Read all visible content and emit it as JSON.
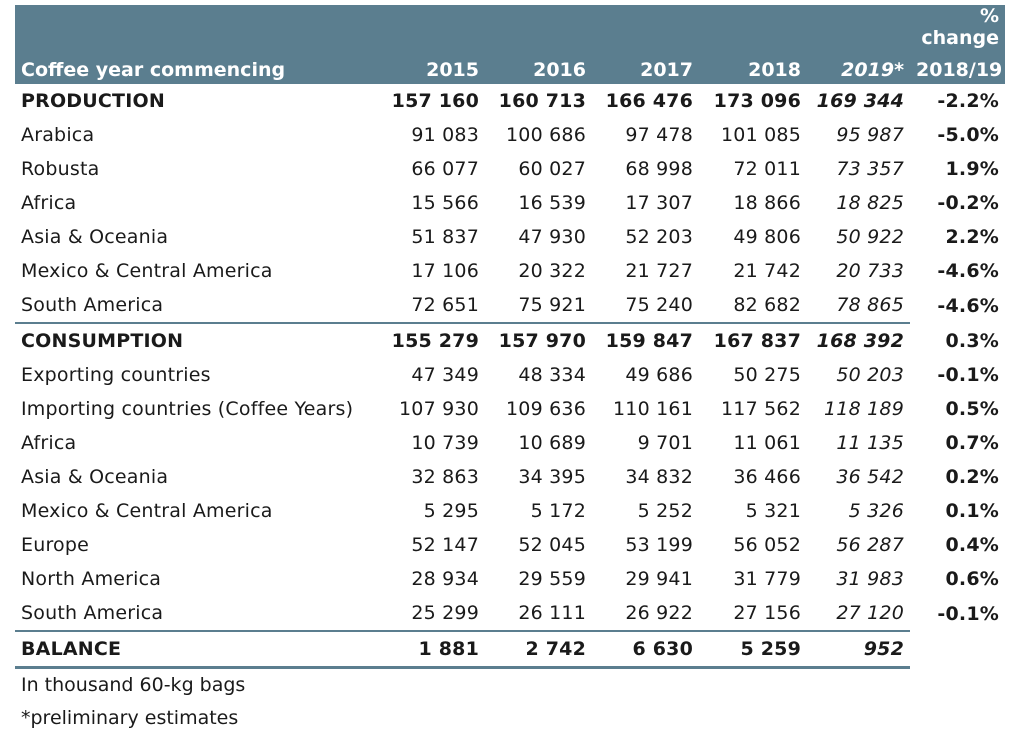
{
  "header": {
    "label": "Coffee year commencing",
    "years": [
      "2015",
      "2016",
      "2017",
      "2018"
    ],
    "year_prelim": "2019",
    "year_prelim_mark": "*",
    "change_line1": "% change",
    "change_line2": "2018/19"
  },
  "rows": [
    {
      "label": "PRODUCTION",
      "v": [
        "157 160",
        "160 713",
        "166 476",
        "173 096"
      ],
      "p": "169 344",
      "c": "-2.2%"
    },
    {
      "label": "Arabica",
      "v": [
        "91 083",
        "100 686",
        "97 478",
        "101 085"
      ],
      "p": "95 987",
      "c": "-5.0%"
    },
    {
      "label": "Robusta",
      "v": [
        "66 077",
        "60 027",
        "68 998",
        "72 011"
      ],
      "p": "73 357",
      "c": "1.9%"
    },
    {
      "label": "Africa",
      "v": [
        "15 566",
        "16 539",
        "17 307",
        "18 866"
      ],
      "p": "18 825",
      "c": "-0.2%"
    },
    {
      "label": "Asia & Oceania",
      "v": [
        "51 837",
        "47 930",
        "52 203",
        "49 806"
      ],
      "p": "50 922",
      "c": "2.2%"
    },
    {
      "label": "Mexico & Central America",
      "v": [
        "17 106",
        "20 322",
        "21 727",
        "21 742"
      ],
      "p": "20 733",
      "c": "-4.6%"
    },
    {
      "label": "South America",
      "v": [
        "72 651",
        "75 921",
        "75 240",
        "82 682"
      ],
      "p": "78 865",
      "c": "-4.6%"
    },
    {
      "label": "CONSUMPTION",
      "v": [
        "155 279",
        "157 970",
        "159 847",
        "167 837"
      ],
      "p": "168 392",
      "c": "0.3%"
    },
    {
      "label": "Exporting countries",
      "v": [
        "47 349",
        "48 334",
        "49 686",
        "50 275"
      ],
      "p": "50 203",
      "c": "-0.1%"
    },
    {
      "label": "Importing countries (Coffee Years)",
      "v": [
        "107 930",
        "109 636",
        "110 161",
        "117 562"
      ],
      "p": "118 189",
      "c": "0.5%"
    },
    {
      "label": "Africa",
      "v": [
        "10 739",
        "10 689",
        "9 701",
        "11 061"
      ],
      "p": "11 135",
      "c": "0.7%"
    },
    {
      "label": "Asia & Oceania",
      "v": [
        "32 863",
        "34 395",
        "34 832",
        "36 466"
      ],
      "p": "36 542",
      "c": "0.2%"
    },
    {
      "label": "Mexico & Central America",
      "v": [
        "5 295",
        "5 172",
        "5 252",
        "5 321"
      ],
      "p": "5 326",
      "c": "0.1%"
    },
    {
      "label": "Europe",
      "v": [
        "52 147",
        "52 045",
        "53 199",
        "56 052"
      ],
      "p": "56 287",
      "c": "0.4%"
    },
    {
      "label": "North America",
      "v": [
        "28 934",
        "29 559",
        "29 941",
        "31 779"
      ],
      "p": "31 983",
      "c": "0.6%"
    },
    {
      "label": "South America",
      "v": [
        "25 299",
        "26 111",
        "26 922",
        "27 156"
      ],
      "p": "27 120",
      "c": "-0.1%"
    },
    {
      "label": "BALANCE",
      "v": [
        "1 881",
        "2 742",
        "6 630",
        "5 259"
      ],
      "p": "952",
      "c": ""
    }
  ],
  "footnotes": {
    "units": "In thousand 60-kg bags",
    "prelim": "*preliminary estimates"
  }
}
